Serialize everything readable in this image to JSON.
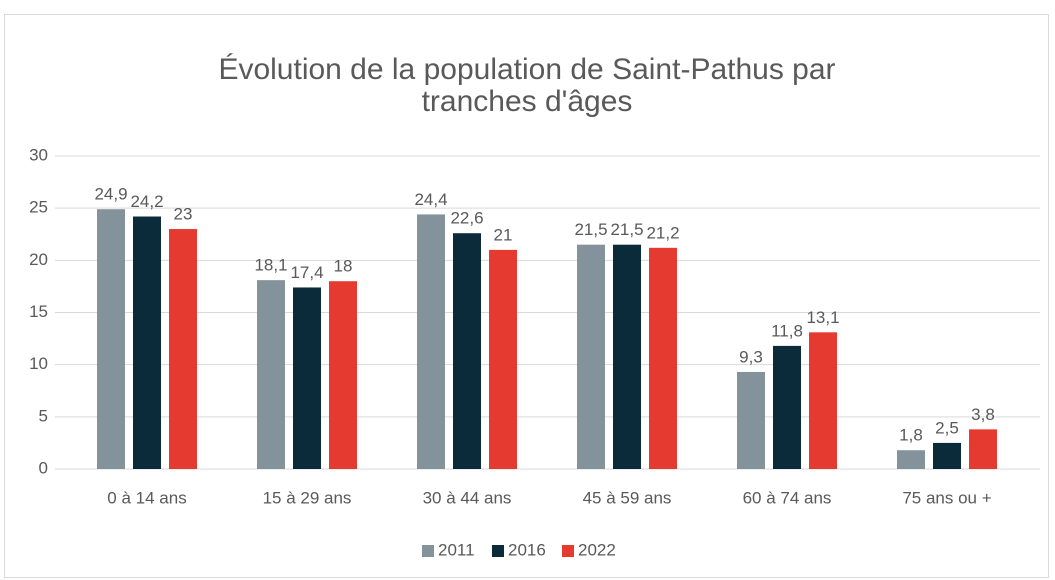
{
  "chart_data": {
    "type": "bar",
    "title": "Évolution de la population de Saint-Pathus par tranches d'âges",
    "categories": [
      "0 à 14 ans",
      "15 à 29 ans",
      "30 à 44 ans",
      "45 à 59 ans",
      "60 à 74 ans",
      "75 ans ou +"
    ],
    "series": [
      {
        "name": "2011",
        "color": "#84939b",
        "values": [
          24.9,
          18.1,
          24.4,
          21.5,
          9.3,
          1.8
        ],
        "value_labels": [
          "24,9",
          "18,1",
          "24,4",
          "21,5",
          "9,3",
          "1,8"
        ]
      },
      {
        "name": "2016",
        "color": "#0b2a3a",
        "values": [
          24.2,
          17.4,
          22.6,
          21.5,
          11.8,
          2.5
        ],
        "value_labels": [
          "24,2",
          "17,4",
          "22,6",
          "21,5",
          "11,8",
          "2,5"
        ]
      },
      {
        "name": "2022",
        "color": "#e43a2f",
        "values": [
          23,
          18,
          21,
          21.2,
          13.1,
          3.8
        ],
        "value_labels": [
          "23",
          "18",
          "21",
          "21,2",
          "13,1",
          "3,8"
        ]
      }
    ],
    "ylim": [
      0,
      30
    ],
    "yticks": [
      0,
      5,
      10,
      15,
      20,
      25,
      30
    ],
    "grid": true,
    "legend": "bottom"
  }
}
